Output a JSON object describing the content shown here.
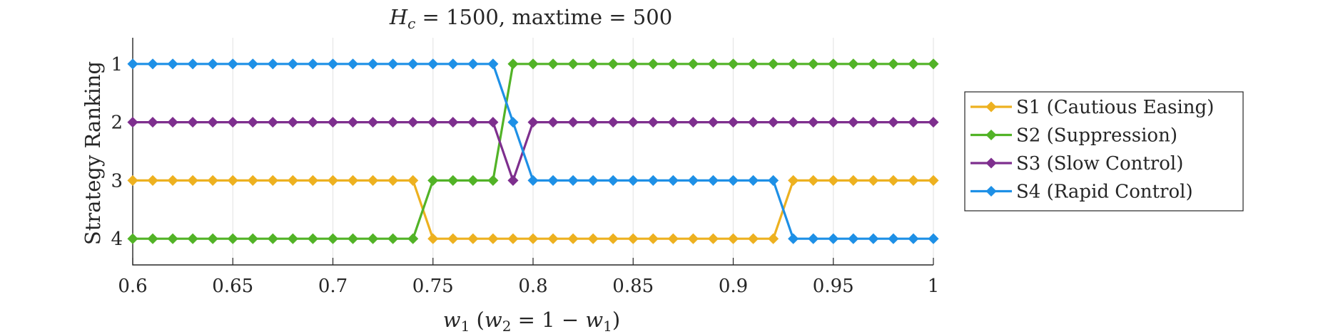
{
  "chart_data": {
    "type": "line",
    "title": "H_c = 1500, maxtime = 500",
    "title_parts": {
      "var": "H",
      "sub": "c",
      "rest": " = 1500, maxtime = 500"
    },
    "xlabel": "w1 (w2 = 1 − w1)",
    "xlabel_parts": {
      "w1": "w",
      "w1_sub": "1",
      "mid": " (",
      "w2": "w",
      "w2_sub": "2",
      "eq": " = 1 − ",
      "w3": "w",
      "w3_sub": "1",
      "end": ")"
    },
    "ylabel": "Strategy Ranking",
    "xlim": [
      0.6,
      1.0
    ],
    "ylim": [
      0.55,
      4.45
    ],
    "y_reversed": true,
    "grid": "vertical",
    "x_ticks": [
      0.6,
      0.65,
      0.7,
      0.75,
      0.8,
      0.85,
      0.9,
      0.95,
      1.0
    ],
    "x_tick_labels": [
      "0.6",
      "0.65",
      "0.7",
      "0.75",
      "0.8",
      "0.85",
      "0.9",
      "0.95",
      "1"
    ],
    "y_ticks": [
      1,
      2,
      3,
      4
    ],
    "y_tick_labels": [
      "1",
      "2",
      "3",
      "4"
    ],
    "x_start": 0.6,
    "x_step": 0.01,
    "legend_position": "outside-right",
    "series": [
      {
        "name": "S1 (Cautious Easing)",
        "color": "#EDB120",
        "values": [
          3,
          3,
          3,
          3,
          3,
          3,
          3,
          3,
          3,
          3,
          3,
          3,
          3,
          3,
          3,
          4,
          4,
          4,
          4,
          4,
          4,
          4,
          4,
          4,
          4,
          4,
          4,
          4,
          4,
          4,
          4,
          4,
          4,
          3,
          3,
          3,
          3,
          3,
          3,
          3,
          3
        ]
      },
      {
        "name": "S2 (Suppression)",
        "color": "#52B327",
        "values": [
          4,
          4,
          4,
          4,
          4,
          4,
          4,
          4,
          4,
          4,
          4,
          4,
          4,
          4,
          4,
          3,
          3,
          3,
          3,
          1,
          1,
          1,
          1,
          1,
          1,
          1,
          1,
          1,
          1,
          1,
          1,
          1,
          1,
          1,
          1,
          1,
          1,
          1,
          1,
          1,
          1
        ]
      },
      {
        "name": "S3 (Slow Control)",
        "color": "#7E2F8E",
        "values": [
          2,
          2,
          2,
          2,
          2,
          2,
          2,
          2,
          2,
          2,
          2,
          2,
          2,
          2,
          2,
          2,
          2,
          2,
          2,
          3,
          2,
          2,
          2,
          2,
          2,
          2,
          2,
          2,
          2,
          2,
          2,
          2,
          2,
          2,
          2,
          2,
          2,
          2,
          2,
          2,
          2
        ]
      },
      {
        "name": "S4 (Rapid Control)",
        "color": "#1E90E6",
        "values": [
          1,
          1,
          1,
          1,
          1,
          1,
          1,
          1,
          1,
          1,
          1,
          1,
          1,
          1,
          1,
          1,
          1,
          1,
          1,
          2,
          3,
          3,
          3,
          3,
          3,
          3,
          3,
          3,
          3,
          3,
          3,
          3,
          3,
          4,
          4,
          4,
          4,
          4,
          4,
          4,
          4
        ]
      }
    ]
  }
}
